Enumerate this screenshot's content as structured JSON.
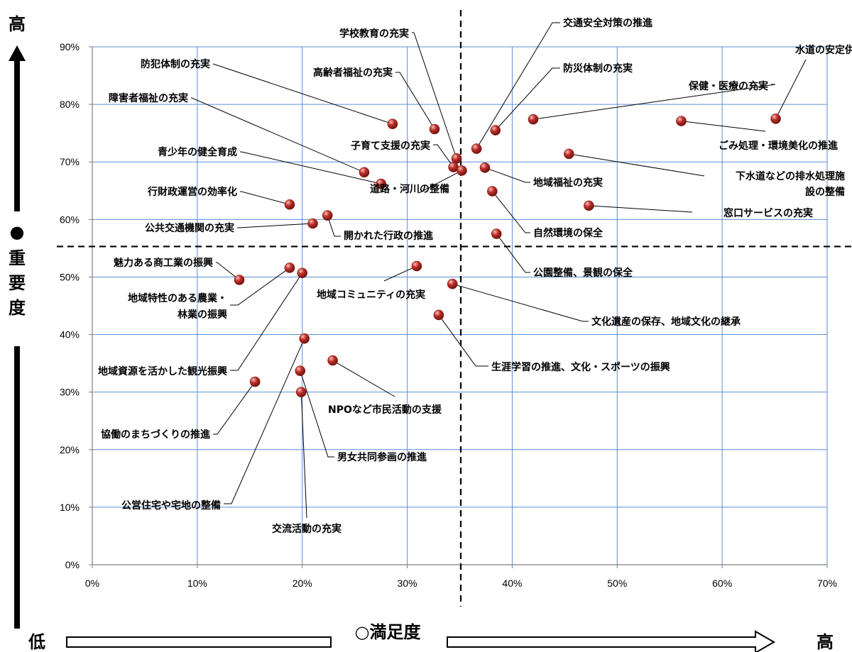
{
  "chart_data": {
    "type": "scatter",
    "x_unit": "percent",
    "y_unit": "percent",
    "xlim": [
      0,
      70
    ],
    "ylim": [
      0,
      90
    ],
    "x_ticks": [
      "0%",
      "10%",
      "20%",
      "30%",
      "40%",
      "50%",
      "60%",
      "70%"
    ],
    "y_ticks": [
      "0%",
      "10%",
      "20%",
      "30%",
      "40%",
      "50%",
      "60%",
      "70%",
      "80%",
      "90%"
    ],
    "grid": true,
    "grid_color": "#5b8fd6",
    "marker_color": "#c0302b",
    "reference_lines": {
      "x": 35.1,
      "y": 55.3,
      "style": "dashed"
    },
    "x_axis": {
      "title": "○満足度",
      "low": "低",
      "high": "高"
    },
    "y_axis": {
      "title_marker": "●",
      "title": "重要度",
      "high": "高"
    },
    "points": [
      {
        "label": "水道の安定供給",
        "x": 65.1,
        "y": 77.5
      },
      {
        "label": "ごみ処理・環境美化の推進",
        "x": 56.1,
        "y": 77.1
      },
      {
        "label": "保健・医療の充実",
        "x": 42.0,
        "y": 77.4
      },
      {
        "label": "防災体制の充実",
        "x": 38.4,
        "y": 75.5
      },
      {
        "label": "交通安全対策の推進",
        "x": 36.6,
        "y": 72.3
      },
      {
        "label": "下水道などの排水処理施設の整備",
        "x": 45.4,
        "y": 71.4
      },
      {
        "label": "窓口サービスの充実",
        "x": 47.3,
        "y": 62.4
      },
      {
        "label": "地域福祉の充実",
        "x": 37.4,
        "y": 69.0
      },
      {
        "label": "自然環境の保全",
        "x": 38.1,
        "y": 64.9
      },
      {
        "label": "公園整備、景観の保全",
        "x": 38.5,
        "y": 57.5
      },
      {
        "label": "学校教育の充実",
        "x": 34.7,
        "y": 70.6
      },
      {
        "label": "子育て支援の充実",
        "x": 34.4,
        "y": 69.1
      },
      {
        "label": "道路・河川の整備",
        "x": 35.2,
        "y": 68.5
      },
      {
        "label": "高齢者福祉の充実",
        "x": 32.6,
        "y": 75.7
      },
      {
        "label": "防犯体制の充実",
        "x": 28.6,
        "y": 76.6
      },
      {
        "label": "障害者福祉の充実",
        "x": 25.9,
        "y": 68.2
      },
      {
        "label": "青少年の健全育成",
        "x": 27.5,
        "y": 66.2
      },
      {
        "label": "行財政運営の効率化",
        "x": 18.8,
        "y": 62.6
      },
      {
        "label": "開かれた行政の推進",
        "x": 22.4,
        "y": 60.7
      },
      {
        "label": "公共交通機関の充実",
        "x": 21.0,
        "y": 59.3
      },
      {
        "label": "魅力ある商工業の振興",
        "x": 14.0,
        "y": 49.5
      },
      {
        "label": "地域特性のある農業・林業の振興",
        "x": 18.8,
        "y": 51.6
      },
      {
        "label": "地域資源を活かした観光振興",
        "x": 20.0,
        "y": 50.7
      },
      {
        "label": "地域コミュニティの充実",
        "x": 30.9,
        "y": 51.9
      },
      {
        "label": "文化遺産の保存、地域文化の継承",
        "x": 34.3,
        "y": 48.8
      },
      {
        "label": "生涯学習の推進、文化・スポーツの振興",
        "x": 33.0,
        "y": 43.4
      },
      {
        "label": "NPOなど市民活動の支援",
        "x": 22.9,
        "y": 35.5
      },
      {
        "label": "協働のまちづくりの推進",
        "x": 15.5,
        "y": 31.8
      },
      {
        "label": "公営住宅や宅地の整備",
        "x": 20.2,
        "y": 39.3
      },
      {
        "label": "男女共同参画の推進",
        "x": 19.8,
        "y": 33.7
      },
      {
        "label": "交流活動の充実",
        "x": 19.9,
        "y": 30.0
      }
    ]
  }
}
